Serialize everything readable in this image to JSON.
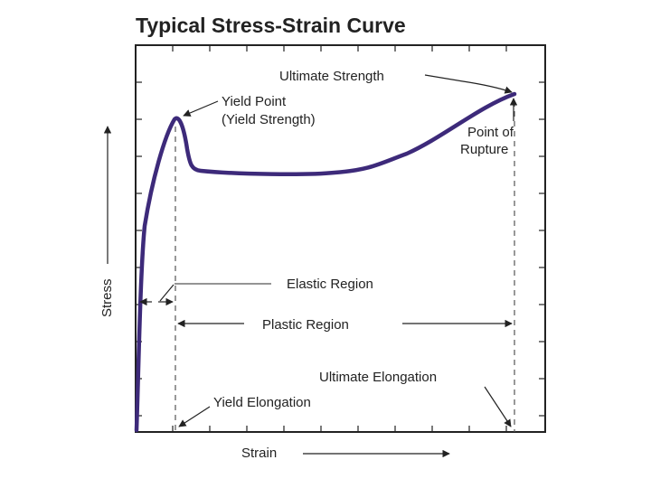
{
  "title": "Typical Stress-Strain Curve",
  "axes": {
    "x_label": "Strain",
    "y_label": "Stress"
  },
  "annotations": {
    "ultimate_strength": "Ultimate Strength",
    "yield_point_line1": "Yield Point",
    "yield_point_line2": "(Yield Strength)",
    "point_of_rupture_line1": "Point of",
    "point_of_rupture_line2": "Rupture",
    "elastic_region": "Elastic Region",
    "plastic_region": "Plastic Region",
    "ultimate_elongation": "Ultimate Elongation",
    "yield_elongation": "Yield Elongation"
  },
  "colors": {
    "curve": "#3d2a7a",
    "frame": "#222222",
    "guides": "#555555",
    "text": "#222222"
  }
}
